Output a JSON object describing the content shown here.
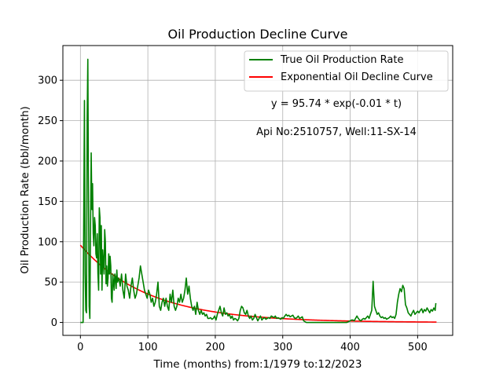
{
  "chart_data": {
    "type": "line",
    "title": "Oil Production Decline Curve",
    "xlabel": "Time (months) from:1/1979 to:12/2023",
    "ylabel": "Oil Production Rate (bbl/month)",
    "xlim": [
      -26,
      552
    ],
    "ylim": [
      -16,
      343
    ],
    "xticks": [
      0,
      100,
      200,
      300,
      400,
      500
    ],
    "yticks": [
      0,
      50,
      100,
      150,
      200,
      250,
      300
    ],
    "grid": true,
    "legend_position": "top-right",
    "annotations": [
      "y = 95.74 * exp(-0.01 * t)",
      "Api No:2510757, Well:11-SX-14"
    ],
    "fit": {
      "a": 95.74,
      "b": 0.01,
      "t_max": 528
    },
    "series": [
      {
        "name": "True Oil Production Rate",
        "color": "#008000",
        "points": [
          [
            0,
            0
          ],
          [
            4,
            0
          ],
          [
            6,
            275
          ],
          [
            7,
            60
          ],
          [
            8,
            15
          ],
          [
            9,
            12
          ],
          [
            10,
            250
          ],
          [
            11,
            326
          ],
          [
            12,
            150
          ],
          [
            13,
            20
          ],
          [
            14,
            5
          ],
          [
            15,
            120
          ],
          [
            16,
            210
          ],
          [
            17,
            140
          ],
          [
            18,
            172
          ],
          [
            19,
            110
          ],
          [
            20,
            95
          ],
          [
            21,
            130
          ],
          [
            22,
            120
          ],
          [
            23,
            85
          ],
          [
            24,
            80
          ],
          [
            25,
            110
          ],
          [
            26,
            60
          ],
          [
            27,
            40
          ],
          [
            28,
            142
          ],
          [
            29,
            130
          ],
          [
            30,
            60
          ],
          [
            31,
            120
          ],
          [
            32,
            40
          ],
          [
            33,
            90
          ],
          [
            34,
            75
          ],
          [
            35,
            60
          ],
          [
            36,
            115
          ],
          [
            37,
            100
          ],
          [
            38,
            48
          ],
          [
            39,
            70
          ],
          [
            40,
            45
          ],
          [
            41,
            55
          ],
          [
            42,
            85
          ],
          [
            43,
            60
          ],
          [
            44,
            82
          ],
          [
            45,
            70
          ],
          [
            46,
            30
          ],
          [
            47,
            25
          ],
          [
            48,
            60
          ],
          [
            49,
            50
          ],
          [
            50,
            40
          ],
          [
            51,
            60
          ],
          [
            52,
            55
          ],
          [
            53,
            42
          ],
          [
            54,
            65
          ],
          [
            55,
            50
          ],
          [
            57,
            55
          ],
          [
            59,
            45
          ],
          [
            61,
            60
          ],
          [
            63,
            40
          ],
          [
            65,
            30
          ],
          [
            67,
            60
          ],
          [
            69,
            45
          ],
          [
            71,
            40
          ],
          [
            73,
            30
          ],
          [
            75,
            45
          ],
          [
            77,
            55
          ],
          [
            79,
            40
          ],
          [
            81,
            30
          ],
          [
            83,
            35
          ],
          [
            85,
            45
          ],
          [
            87,
            55
          ],
          [
            89,
            70
          ],
          [
            91,
            60
          ],
          [
            93,
            50
          ],
          [
            95,
            40
          ],
          [
            97,
            35
          ],
          [
            99,
            30
          ],
          [
            101,
            40
          ],
          [
            103,
            35
          ],
          [
            105,
            25
          ],
          [
            107,
            30
          ],
          [
            109,
            20
          ],
          [
            111,
            25
          ],
          [
            113,
            35
          ],
          [
            115,
            50
          ],
          [
            117,
            20
          ],
          [
            119,
            15
          ],
          [
            121,
            25
          ],
          [
            123,
            30
          ],
          [
            125,
            20
          ],
          [
            127,
            30
          ],
          [
            129,
            20
          ],
          [
            131,
            15
          ],
          [
            133,
            35
          ],
          [
            135,
            25
          ],
          [
            137,
            40
          ],
          [
            139,
            20
          ],
          [
            141,
            15
          ],
          [
            143,
            20
          ],
          [
            145,
            30
          ],
          [
            147,
            25
          ],
          [
            149,
            35
          ],
          [
            151,
            25
          ],
          [
            153,
            30
          ],
          [
            155,
            40
          ],
          [
            157,
            55
          ],
          [
            159,
            35
          ],
          [
            161,
            45
          ],
          [
            163,
            30
          ],
          [
            165,
            20
          ],
          [
            167,
            15
          ],
          [
            169,
            20
          ],
          [
            171,
            10
          ],
          [
            173,
            25
          ],
          [
            175,
            15
          ],
          [
            177,
            10
          ],
          [
            179,
            15
          ],
          [
            181,
            10
          ],
          [
            183,
            12
          ],
          [
            185,
            8
          ],
          [
            187,
            10
          ],
          [
            189,
            5
          ],
          [
            191,
            5
          ],
          [
            193,
            6
          ],
          [
            195,
            4
          ],
          [
            197,
            5
          ],
          [
            199,
            8
          ],
          [
            201,
            3
          ],
          [
            203,
            10
          ],
          [
            205,
            15
          ],
          [
            207,
            20
          ],
          [
            209,
            12
          ],
          [
            211,
            8
          ],
          [
            213,
            18
          ],
          [
            215,
            10
          ],
          [
            217,
            12
          ],
          [
            219,
            8
          ],
          [
            221,
            10
          ],
          [
            223,
            5
          ],
          [
            225,
            8
          ],
          [
            227,
            3
          ],
          [
            229,
            5
          ],
          [
            231,
            4
          ],
          [
            233,
            2
          ],
          [
            235,
            5
          ],
          [
            237,
            15
          ],
          [
            239,
            20
          ],
          [
            241,
            18
          ],
          [
            243,
            12
          ],
          [
            245,
            10
          ],
          [
            247,
            15
          ],
          [
            249,
            8
          ],
          [
            251,
            5
          ],
          [
            253,
            8
          ],
          [
            255,
            3
          ],
          [
            257,
            5
          ],
          [
            259,
            10
          ],
          [
            261,
            6
          ],
          [
            263,
            2
          ],
          [
            265,
            5
          ],
          [
            267,
            8
          ],
          [
            269,
            3
          ],
          [
            271,
            5
          ],
          [
            273,
            6
          ],
          [
            275,
            4
          ],
          [
            277,
            5
          ],
          [
            279,
            6
          ],
          [
            281,
            5
          ],
          [
            283,
            8
          ],
          [
            285,
            7
          ],
          [
            287,
            6
          ],
          [
            289,
            8
          ],
          [
            291,
            5
          ],
          [
            293,
            6
          ],
          [
            295,
            5
          ],
          [
            297,
            4
          ],
          [
            299,
            6
          ],
          [
            301,
            5
          ],
          [
            303,
            8
          ],
          [
            305,
            10
          ],
          [
            307,
            8
          ],
          [
            309,
            9
          ],
          [
            311,
            7
          ],
          [
            313,
            8
          ],
          [
            315,
            9
          ],
          [
            317,
            6
          ],
          [
            319,
            5
          ],
          [
            321,
            6
          ],
          [
            323,
            8
          ],
          [
            325,
            5
          ],
          [
            327,
            6
          ],
          [
            329,
            7
          ],
          [
            331,
            2
          ],
          [
            333,
            1
          ],
          [
            335,
            0
          ],
          [
            339,
            0
          ],
          [
            345,
            0
          ],
          [
            350,
            0
          ],
          [
            360,
            0
          ],
          [
            370,
            0
          ],
          [
            380,
            0
          ],
          [
            390,
            0
          ],
          [
            395,
            0
          ],
          [
            400,
            2
          ],
          [
            402,
            3
          ],
          [
            404,
            3
          ],
          [
            406,
            2
          ],
          [
            408,
            5
          ],
          [
            410,
            8
          ],
          [
            412,
            5
          ],
          [
            414,
            3
          ],
          [
            416,
            2
          ],
          [
            418,
            4
          ],
          [
            420,
            5
          ],
          [
            422,
            4
          ],
          [
            424,
            6
          ],
          [
            426,
            8
          ],
          [
            428,
            5
          ],
          [
            430,
            10
          ],
          [
            432,
            15
          ],
          [
            434,
            51
          ],
          [
            436,
            20
          ],
          [
            438,
            15
          ],
          [
            440,
            10
          ],
          [
            442,
            12
          ],
          [
            444,
            8
          ],
          [
            446,
            6
          ],
          [
            448,
            7
          ],
          [
            450,
            5
          ],
          [
            452,
            6
          ],
          [
            454,
            4
          ],
          [
            456,
            5
          ],
          [
            458,
            6
          ],
          [
            460,
            8
          ],
          [
            462,
            6
          ],
          [
            464,
            7
          ],
          [
            466,
            5
          ],
          [
            468,
            10
          ],
          [
            470,
            25
          ],
          [
            472,
            35
          ],
          [
            474,
            42
          ],
          [
            476,
            38
          ],
          [
            478,
            46
          ],
          [
            480,
            42
          ],
          [
            482,
            22
          ],
          [
            484,
            18
          ],
          [
            486,
            12
          ],
          [
            488,
            10
          ],
          [
            490,
            8
          ],
          [
            492,
            12
          ],
          [
            494,
            15
          ],
          [
            496,
            10
          ],
          [
            498,
            12
          ],
          [
            500,
            14
          ],
          [
            502,
            12
          ],
          [
            504,
            15
          ],
          [
            506,
            17
          ],
          [
            508,
            12
          ],
          [
            510,
            16
          ],
          [
            512,
            14
          ],
          [
            514,
            18
          ],
          [
            516,
            15
          ],
          [
            518,
            12
          ],
          [
            520,
            16
          ],
          [
            522,
            14
          ],
          [
            524,
            18
          ],
          [
            526,
            15
          ],
          [
            527,
            24
          ]
        ]
      },
      {
        "name": "Exponential Oil Decline Curve",
        "color": "#ff0000",
        "function": "95.74 * exp(-0.01 * t)"
      }
    ]
  }
}
